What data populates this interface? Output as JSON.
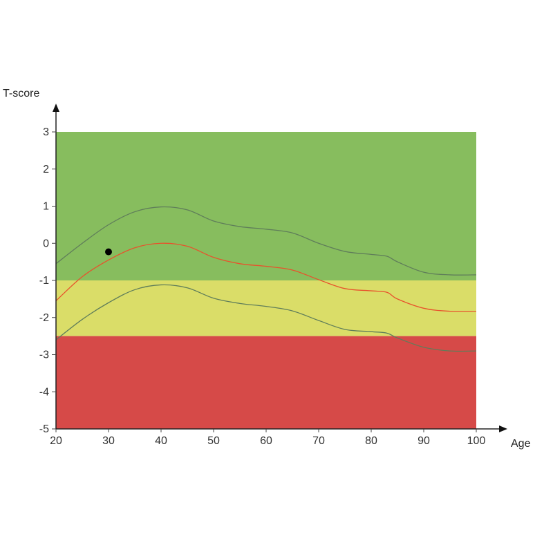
{
  "chart_data": {
    "type": "line",
    "xlabel": "Age",
    "ylabel": "T-score",
    "xlim": [
      20,
      100
    ],
    "ylim": [
      -5,
      3
    ],
    "x_ticks": [
      20,
      30,
      40,
      50,
      60,
      70,
      80,
      90,
      100
    ],
    "y_ticks": [
      3,
      2,
      1,
      0,
      -1,
      -2,
      -3,
      -4,
      -5
    ],
    "bands": [
      {
        "from": -1,
        "to": 3,
        "color": "#87bd5e"
      },
      {
        "from": -2.5,
        "to": -1,
        "color": "#dadd68"
      },
      {
        "from": -5,
        "to": -2.5,
        "color": "#d64a48"
      }
    ],
    "series": [
      {
        "color": "#5f7d5a",
        "points": [
          [
            20,
            -0.55
          ],
          [
            25,
            0.0
          ],
          [
            30,
            0.5
          ],
          [
            35,
            0.85
          ],
          [
            40,
            0.98
          ],
          [
            45,
            0.9
          ],
          [
            50,
            0.6
          ],
          [
            55,
            0.45
          ],
          [
            60,
            0.38
          ],
          [
            65,
            0.28
          ],
          [
            70,
            0.0
          ],
          [
            75,
            -0.22
          ],
          [
            80,
            -0.3
          ],
          [
            83,
            -0.35
          ],
          [
            85,
            -0.5
          ],
          [
            90,
            -0.78
          ],
          [
            95,
            -0.85
          ],
          [
            100,
            -0.85
          ]
        ]
      },
      {
        "color": "#e8522c",
        "points": [
          [
            20,
            -1.55
          ],
          [
            25,
            -0.9
          ],
          [
            30,
            -0.45
          ],
          [
            35,
            -0.12
          ],
          [
            40,
            0.0
          ],
          [
            45,
            -0.08
          ],
          [
            50,
            -0.38
          ],
          [
            55,
            -0.55
          ],
          [
            60,
            -0.62
          ],
          [
            65,
            -0.72
          ],
          [
            70,
            -0.98
          ],
          [
            75,
            -1.22
          ],
          [
            80,
            -1.28
          ],
          [
            83,
            -1.32
          ],
          [
            85,
            -1.5
          ],
          [
            90,
            -1.75
          ],
          [
            95,
            -1.83
          ],
          [
            100,
            -1.83
          ]
        ]
      },
      {
        "color": "#5f7d5a",
        "points": [
          [
            20,
            -2.6
          ],
          [
            25,
            -2.05
          ],
          [
            30,
            -1.6
          ],
          [
            35,
            -1.25
          ],
          [
            40,
            -1.12
          ],
          [
            45,
            -1.2
          ],
          [
            50,
            -1.48
          ],
          [
            55,
            -1.62
          ],
          [
            60,
            -1.7
          ],
          [
            65,
            -1.82
          ],
          [
            70,
            -2.08
          ],
          [
            75,
            -2.32
          ],
          [
            80,
            -2.38
          ],
          [
            83,
            -2.42
          ],
          [
            85,
            -2.55
          ],
          [
            90,
            -2.8
          ],
          [
            95,
            -2.9
          ],
          [
            100,
            -2.9
          ]
        ]
      }
    ],
    "points": [
      {
        "x": 30,
        "y": -0.23,
        "color": "#000000"
      }
    ]
  }
}
